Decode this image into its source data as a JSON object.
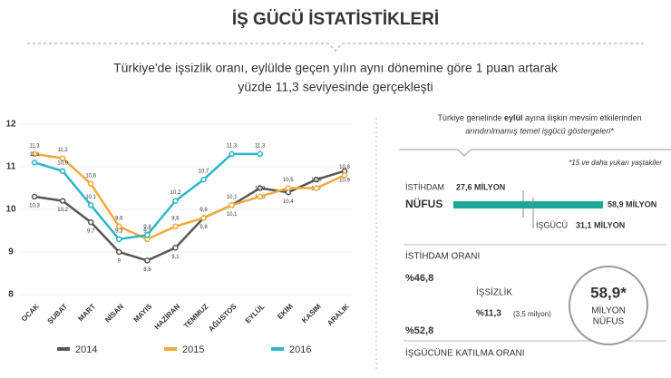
{
  "header": {
    "title": "İŞ GÜCÜ İSTATİSTİKLERİ",
    "subtitle": [
      "Türkiye'de işsizlik oranı, eylülde geçen yılın aynı dönemine göre 1 puan artarak",
      "yüzde 11,3 seviyesinde gerçekleşti"
    ]
  },
  "chart_data": {
    "type": "line",
    "categories": [
      "OCAK",
      "ŞUBAT",
      "MART",
      "NİSAN",
      "MAYIS",
      "HAZİRAN",
      "TEMMUZ",
      "AĞUSTOS",
      "EYLÜL",
      "EKİM",
      "KASIM",
      "ARALIK"
    ],
    "ylim": [
      8,
      12
    ],
    "yticks": [
      8,
      9,
      10,
      11,
      12
    ],
    "series": [
      {
        "name": "2014",
        "color": "#58585a",
        "values": [
          10.3,
          10.2,
          9.7,
          9,
          8.8,
          9.1,
          9.8,
          10.1,
          10.5,
          10.4,
          10.7,
          10.9
        ],
        "value_labels": [
          "10,3",
          "10,2",
          "9,7",
          "9",
          "8,8",
          "9,1",
          "9,8",
          "10,1",
          "10,5",
          "10,4",
          "10,7",
          "10,9"
        ]
      },
      {
        "name": "2015",
        "color": "#f2a93b",
        "values": [
          11.3,
          11.2,
          10.6,
          9.6,
          9.3,
          9.6,
          9.8,
          10.1,
          10.3,
          10.5,
          10.5,
          10.8
        ],
        "value_labels": [
          "11,3",
          "11,2",
          "10,6",
          "9,6",
          "9,3",
          "9,6",
          "9,8",
          "10,1",
          "10,3",
          "10,5",
          "10,5",
          "10,8"
        ]
      },
      {
        "name": "2016",
        "color": "#2cb5c8",
        "values": [
          11.1,
          10.9,
          10.1,
          9.3,
          9.4,
          10.2,
          10.7,
          11.3,
          11.3,
          null,
          null,
          null
        ],
        "value_labels": [
          "11,1",
          "10,9",
          "10,1",
          "9,3",
          "9,4",
          "10,2",
          "10,7",
          "11,3",
          "11,3",
          null,
          null,
          null
        ]
      }
    ]
  },
  "panel": {
    "intro": [
      "Türkiye genelinde ",
      "eylül",
      " ayına ilişkin mevsim etkilerinden"
    ],
    "intro2": "arındırılmamış temel işgücü göstergeleri*",
    "footnote": "*15 ve daha yukarı yaştakiler",
    "employment_label": "İSTİHDAM",
    "employment_value": "27,6 MİLYON",
    "population_label": "NÜFUS",
    "population_value": "58,9 MİLYON",
    "labor_label": "İŞGÜCÜ",
    "labor_value": "31,1 MİLYON",
    "employment_rate_label": "İSTİHDAM ORANI",
    "employment_rate": "%46,8",
    "unemployment_label": "İŞSİZLİK",
    "unemployment_rate": "%11,3",
    "unemployment_count": "(3,5 milyon)",
    "participation_rate": "%52,8",
    "participation_label": "İŞGÜCÜNE KATILMA ORANI",
    "circle_value": "58,9*",
    "circle_unit": "MİLYON",
    "circle_label": "NÜFUS"
  }
}
